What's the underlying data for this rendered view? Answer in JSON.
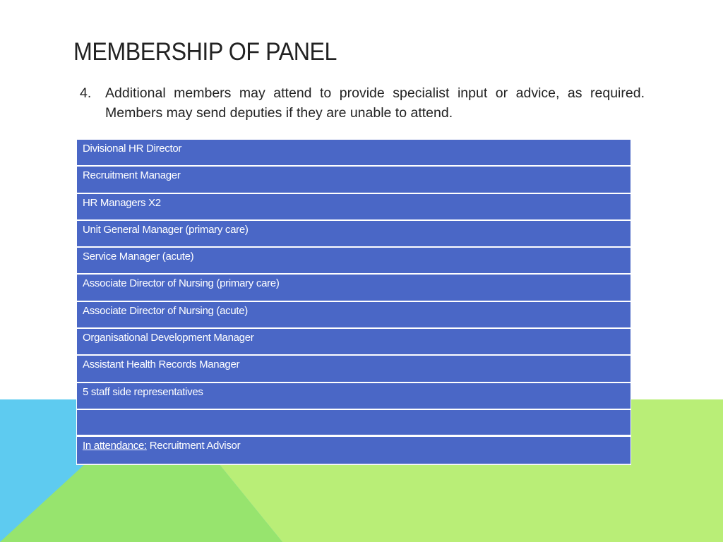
{
  "slide": {
    "title": "MEMBERSHIP OF PANEL",
    "paragraph_number": "4.",
    "paragraph_text": "Additional members may attend to provide specialist input or advice, as required.  Members may send deputies if they are unable to attend."
  },
  "members": [
    "Divisional HR Director",
    "Recruitment Manager",
    "HR Managers X2",
    "Unit General Manager (primary care)",
    "Service Manager (acute)",
    "Associate Director of Nursing (primary care)",
    "Associate Director of Nursing (acute)",
    "Organisational Development Manager",
    "Assistant Health Records Manager",
    "5 staff side representatives",
    ""
  ],
  "attendance": {
    "label": "In attendance:",
    "value": " Recruitment Advisor"
  },
  "colors": {
    "table_row": "#4a67c6",
    "blue": "#5ecbf0",
    "green": "#97e46e",
    "light_green": "#b9ee77"
  }
}
